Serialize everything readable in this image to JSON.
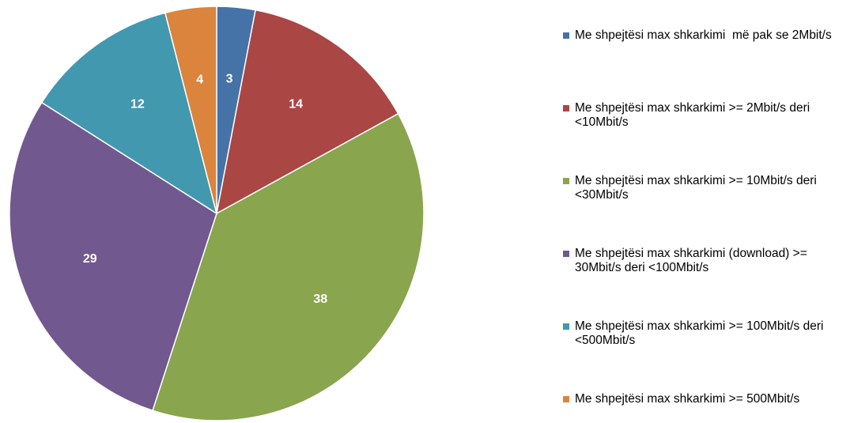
{
  "chart_data": {
    "type": "pie",
    "categories": [
      "Me shpejtësi max shkarkimi  më pak se 2Mbit/s",
      "Me shpejtësi max shkarkimi >= 2Mbit/s deri <10Mbit/s",
      "Me shpejtësi max shkarkimi >= 10Mbit/s deri <30Mbit/s",
      "Me shpejtësi max shkarkimi (download) >= 30Mbit/s deri <100Mbit/s",
      "Me shpejtësi max shkarkimi >= 100Mbit/s deri <500Mbit/s",
      "Me shpejtësi max shkarkimi >= 500Mbit/s"
    ],
    "values": [
      3,
      14,
      38,
      29,
      12,
      4
    ],
    "colors": [
      "#4572a7",
      "#aa4643",
      "#89a54e",
      "#71588f",
      "#4198af",
      "#db843d"
    ],
    "legend": "right"
  }
}
